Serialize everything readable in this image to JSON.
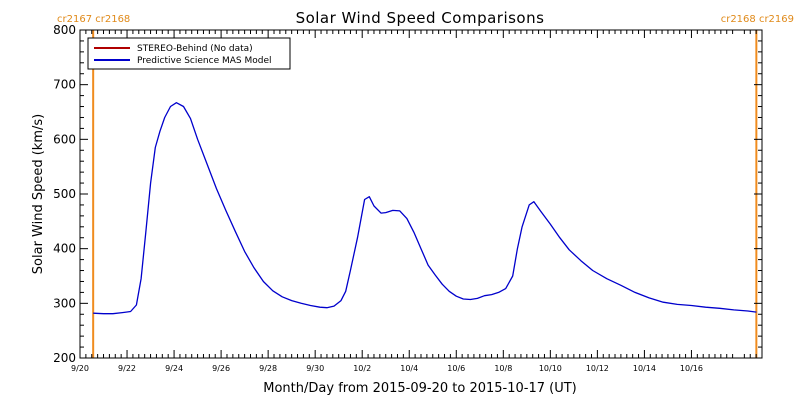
{
  "colors": {
    "stereo": "#b00000",
    "model": "#0000cc",
    "carrington": "#f08c1e",
    "axes": "#000000"
  },
  "carrington": {
    "left_label": "cr2167  cr2168",
    "right_label": "cr2168  cr2169",
    "lines_x_days": [
      0.56,
      28.76
    ]
  },
  "legend": {
    "items": [
      {
        "label": "STEREO-Behind (No data)",
        "color_key": "stereo"
      },
      {
        "label": "Predictive Science MAS Model",
        "color_key": "model"
      }
    ],
    "placement": "top-left"
  },
  "chart_data": {
    "type": "line",
    "title": "Solar Wind Speed Comparisons",
    "xlabel": "Month/Day from 2015-09-20 to 2015-10-17 (UT)",
    "ylabel": "Solar Wind Speed (km/s)",
    "ylim": [
      200,
      800
    ],
    "xlim_days": [
      0,
      29.0
    ],
    "yticks": [
      200,
      300,
      400,
      500,
      600,
      700,
      800
    ],
    "ytick_labels": [
      "200",
      "300",
      "400",
      "500",
      "600",
      "700",
      "800"
    ],
    "xticks_days": [
      0,
      2,
      4,
      6,
      8,
      10,
      12,
      14,
      16,
      18,
      20,
      22,
      24,
      26
    ],
    "xtick_labels": [
      "9/20",
      "9/22",
      "9/24",
      "9/26",
      "9/28",
      "9/30",
      "10/2",
      "10/4",
      "10/6",
      "10/8",
      "10/10",
      "10/12",
      "10/14",
      "10/16"
    ],
    "grid": false,
    "series": [
      {
        "name": "STEREO-Behind (No data)",
        "color_key": "stereo",
        "x_days": [],
        "y": []
      },
      {
        "name": "Predictive Science MAS Model",
        "color_key": "model",
        "x_days": [
          0.56,
          1.0,
          1.4,
          1.8,
          2.15,
          2.4,
          2.6,
          2.8,
          3.0,
          3.2,
          3.4,
          3.6,
          3.85,
          4.1,
          4.4,
          4.7,
          5.0,
          5.4,
          5.8,
          6.2,
          6.6,
          7.0,
          7.4,
          7.8,
          8.2,
          8.6,
          9.0,
          9.4,
          9.8,
          10.2,
          10.5,
          10.8,
          11.1,
          11.3,
          11.5,
          11.8,
          12.1,
          12.3,
          12.5,
          12.8,
          13.0,
          13.3,
          13.6,
          13.9,
          14.2,
          14.5,
          14.8,
          15.1,
          15.4,
          15.7,
          16.0,
          16.3,
          16.6,
          16.9,
          17.2,
          17.5,
          17.8,
          18.1,
          18.4,
          18.6,
          18.8,
          19.1,
          19.3,
          19.6,
          20.0,
          20.4,
          20.8,
          21.3,
          21.8,
          22.4,
          23.0,
          23.6,
          24.2,
          24.8,
          25.4,
          26.0,
          26.6,
          27.2,
          27.8,
          28.4,
          28.76
        ],
        "y": [
          282,
          281,
          281,
          283,
          285,
          297,
          345,
          430,
          520,
          585,
          615,
          640,
          660,
          667,
          660,
          638,
          600,
          555,
          510,
          470,
          432,
          395,
          365,
          340,
          323,
          312,
          305,
          300,
          296,
          293,
          292,
          295,
          305,
          322,
          360,
          420,
          490,
          495,
          478,
          465,
          466,
          470,
          469,
          455,
          430,
          400,
          370,
          352,
          335,
          322,
          313,
          308,
          307,
          309,
          314,
          316,
          320,
          327,
          350,
          400,
          440,
          480,
          486,
          468,
          445,
          420,
          398,
          378,
          360,
          345,
          333,
          320,
          310,
          302,
          298,
          296,
          293,
          291,
          288,
          286,
          284
        ]
      }
    ]
  }
}
